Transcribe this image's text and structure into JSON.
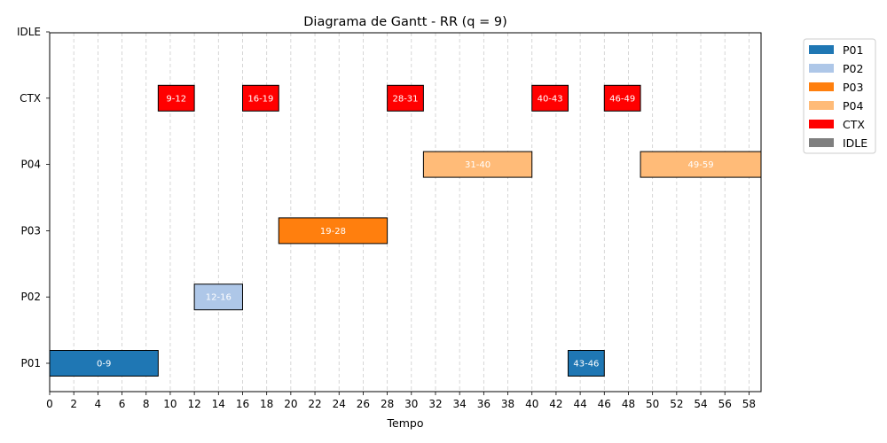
{
  "chart_data": {
    "type": "gantt",
    "title": "Diagrama de Gantt - RR (q = 9)",
    "xlabel": "Tempo",
    "ylabel": "",
    "xlim": [
      0,
      59
    ],
    "xticks": [
      0,
      2,
      4,
      6,
      8,
      10,
      12,
      14,
      16,
      18,
      20,
      22,
      24,
      26,
      28,
      30,
      32,
      34,
      36,
      38,
      40,
      42,
      44,
      46,
      48,
      50,
      52,
      54,
      56,
      58
    ],
    "rows": [
      "P01",
      "P02",
      "P03",
      "P04",
      "CTX",
      "IDLE"
    ],
    "colors": {
      "P01": "#1f77b4",
      "P02": "#aec7e8",
      "P03": "#ff7f0e",
      "P04": "#ffbb78",
      "CTX": "#ff0000",
      "IDLE": "#7f7f7f"
    },
    "legend": [
      "P01",
      "P02",
      "P03",
      "P04",
      "CTX",
      "IDLE"
    ],
    "legend_placement": "outside-top-right",
    "grid": "vertical-dashed",
    "segments": [
      {
        "row": "P01",
        "start": 0,
        "end": 9,
        "label": "0-9"
      },
      {
        "row": "CTX",
        "start": 9,
        "end": 12,
        "label": "9-12"
      },
      {
        "row": "P02",
        "start": 12,
        "end": 16,
        "label": "12-16"
      },
      {
        "row": "CTX",
        "start": 16,
        "end": 19,
        "label": "16-19"
      },
      {
        "row": "P03",
        "start": 19,
        "end": 28,
        "label": "19-28"
      },
      {
        "row": "CTX",
        "start": 28,
        "end": 31,
        "label": "28-31"
      },
      {
        "row": "P04",
        "start": 31,
        "end": 40,
        "label": "31-40"
      },
      {
        "row": "CTX",
        "start": 40,
        "end": 43,
        "label": "40-43"
      },
      {
        "row": "P01",
        "start": 43,
        "end": 46,
        "label": "43-46"
      },
      {
        "row": "CTX",
        "start": 46,
        "end": 49,
        "label": "46-49"
      },
      {
        "row": "P04",
        "start": 49,
        "end": 59,
        "label": "49-59"
      }
    ]
  }
}
